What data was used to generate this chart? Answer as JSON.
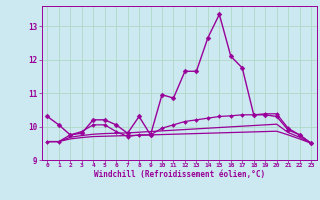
{
  "background_color": "#cce8f0",
  "grid_color": "#b0d8c8",
  "line_color": "#990099",
  "x_label": "Windchill (Refroidissement éolien,°C)",
  "x_ticks": [
    0,
    1,
    2,
    3,
    4,
    5,
    6,
    7,
    8,
    9,
    10,
    11,
    12,
    13,
    14,
    15,
    16,
    17,
    18,
    19,
    20,
    21,
    22,
    23
  ],
  "ylim": [
    9.0,
    13.6
  ],
  "yticks": [
    9,
    10,
    11,
    12,
    13
  ],
  "xlim": [
    -0.5,
    23.5
  ],
  "series": [
    {
      "x": [
        0,
        1,
        2,
        3,
        4,
        5,
        6,
        7,
        8,
        9,
        10,
        11,
        12,
        13,
        14,
        15,
        16,
        17,
        18,
        19,
        20,
        21,
        22,
        23
      ],
      "y": [
        10.3,
        10.05,
        9.75,
        9.8,
        10.2,
        10.2,
        10.05,
        9.8,
        10.3,
        9.75,
        10.95,
        10.85,
        11.65,
        11.65,
        12.65,
        13.35,
        12.1,
        11.75,
        10.35,
        10.35,
        10.3,
        9.9,
        9.75,
        9.5
      ],
      "marker": "D",
      "markersize": 2.5,
      "linewidth": 1.0
    },
    {
      "x": [
        0,
        1,
        2,
        3,
        4,
        5,
        6,
        7,
        8,
        9,
        10,
        11,
        12,
        13,
        14,
        15,
        16,
        17,
        18,
        19,
        20,
        21,
        22,
        23
      ],
      "y": [
        9.55,
        9.55,
        9.75,
        9.85,
        10.05,
        10.05,
        9.85,
        9.7,
        9.75,
        9.75,
        9.95,
        10.05,
        10.15,
        10.2,
        10.25,
        10.3,
        10.32,
        10.35,
        10.35,
        10.38,
        10.38,
        9.95,
        9.75,
        9.5
      ],
      "marker": "D",
      "markersize": 2.0,
      "linewidth": 0.9
    },
    {
      "x": [
        0,
        1,
        2,
        3,
        4,
        5,
        6,
        7,
        8,
        9,
        10,
        11,
        12,
        13,
        14,
        15,
        16,
        17,
        18,
        19,
        20,
        21,
        22,
        23
      ],
      "y": [
        9.55,
        9.55,
        9.68,
        9.73,
        9.77,
        9.79,
        9.8,
        9.81,
        9.83,
        9.85,
        9.87,
        9.89,
        9.91,
        9.93,
        9.95,
        9.97,
        9.99,
        10.01,
        10.03,
        10.05,
        10.07,
        9.82,
        9.68,
        9.5
      ],
      "marker": null,
      "markersize": 0,
      "linewidth": 0.9
    },
    {
      "x": [
        0,
        1,
        2,
        3,
        4,
        5,
        6,
        7,
        8,
        9,
        10,
        11,
        12,
        13,
        14,
        15,
        16,
        17,
        18,
        19,
        20,
        21,
        22,
        23
      ],
      "y": [
        9.55,
        9.55,
        9.63,
        9.67,
        9.7,
        9.71,
        9.72,
        9.73,
        9.74,
        9.75,
        9.76,
        9.77,
        9.78,
        9.79,
        9.8,
        9.81,
        9.82,
        9.83,
        9.84,
        9.85,
        9.86,
        9.75,
        9.63,
        9.5
      ],
      "marker": null,
      "markersize": 0,
      "linewidth": 0.9
    }
  ]
}
